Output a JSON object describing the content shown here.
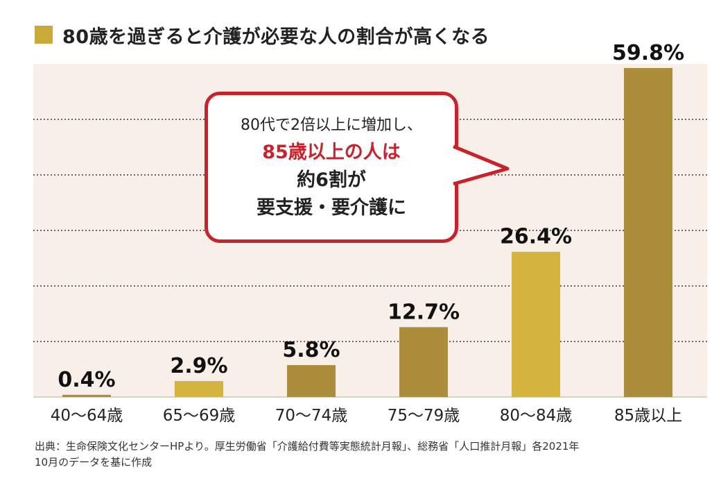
{
  "title": "80歳を過ぎると介護が必要な人の割合が高くなる",
  "colors": {
    "accent_gold": "#c9a93a",
    "bar_dark": "#ab8d3a",
    "bar_light": "#d4b43c",
    "plot_bg": "#f7efe8",
    "callout_red": "#c8232c"
  },
  "callout": {
    "line1": "80代で2倍以上に増加し、",
    "line2": "85歳以上の人は",
    "line3": "約6割が",
    "line4": "要支援・要介護に"
  },
  "source": {
    "line1": "出典：生命保険文化センターHPより。厚生労働省「介護給付費等実態統計月報」、総務省「人口推計月報」各2021年",
    "line2": "10月のデータを基に作成"
  },
  "chart_data": {
    "type": "bar",
    "categories": [
      "40〜64歳",
      "65〜69歳",
      "70〜74歳",
      "75〜79歳",
      "80〜84歳",
      "85歳以上"
    ],
    "values": [
      0.4,
      2.9,
      5.8,
      12.7,
      26.4,
      59.8
    ],
    "value_labels": [
      "0.4%",
      "2.9%",
      "5.8%",
      "12.7%",
      "26.4%",
      "59.8%"
    ],
    "bar_tones": [
      "dark",
      "light",
      "dark",
      "dark",
      "light",
      "dark"
    ],
    "ylim": [
      0,
      59.8
    ],
    "grid": true,
    "xlabel": "",
    "ylabel": ""
  }
}
